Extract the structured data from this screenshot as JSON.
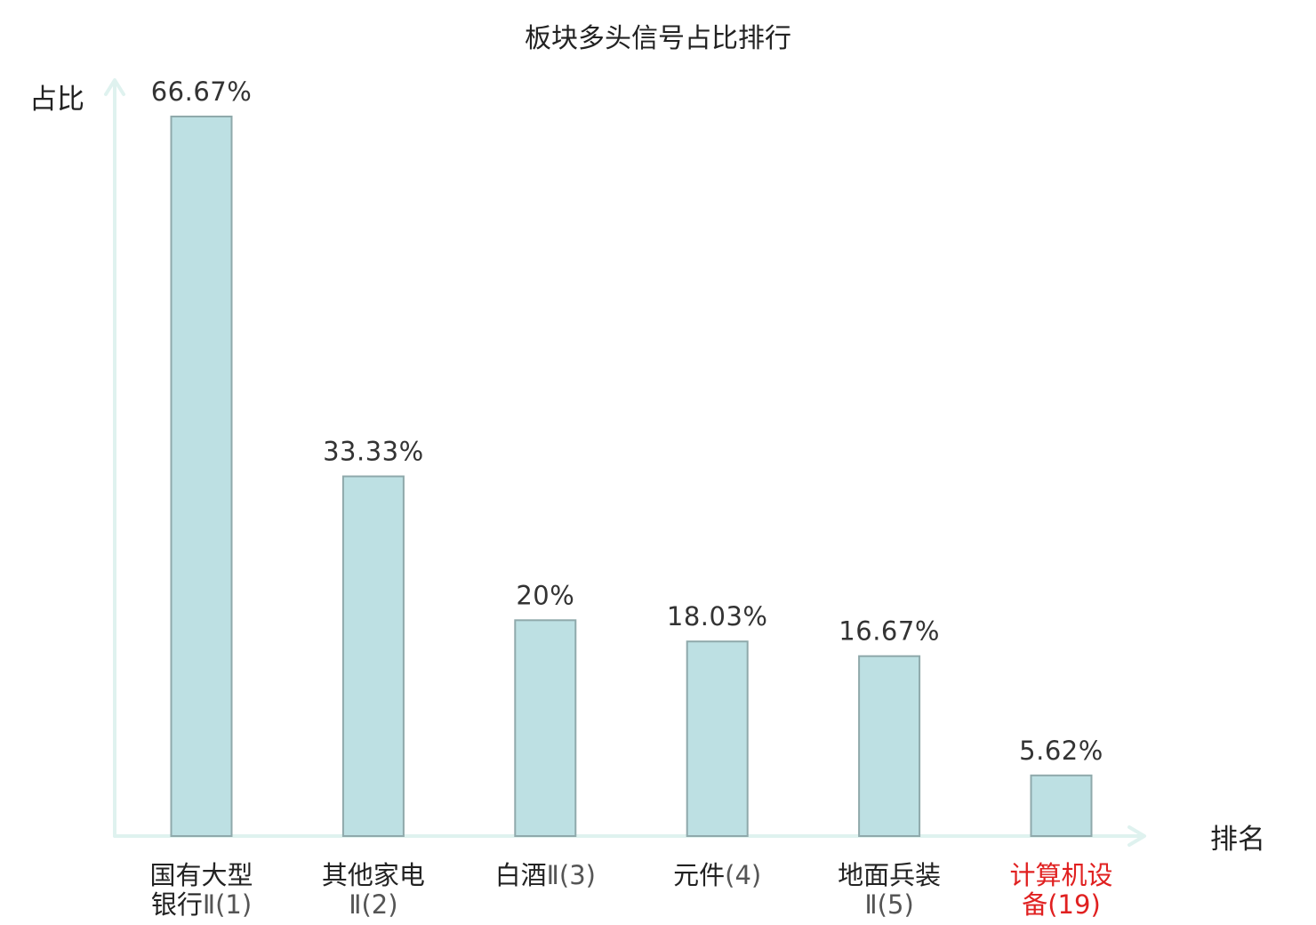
{
  "chart_data": {
    "type": "bar",
    "title": "板块多头信号占比排行",
    "xlabel": "排名",
    "ylabel": "占比",
    "categories": [
      [
        "国有大型",
        "银行Ⅱ(1)"
      ],
      [
        "其他家电",
        "Ⅱ(2)"
      ],
      [
        "白酒Ⅱ(3)"
      ],
      [
        "元件(4)"
      ],
      [
        "地面兵装",
        "Ⅱ(5)"
      ],
      [
        "计算机设",
        "备(19)"
      ]
    ],
    "values": [
      66.67,
      33.33,
      20,
      18.03,
      16.67,
      5.62
    ],
    "value_labels": [
      "66.67%",
      "33.33%",
      "20%",
      "18.03%",
      "16.67%",
      "5.62%"
    ],
    "highlight_index": 5,
    "ylim": [
      0,
      66.67
    ],
    "grid": false,
    "colors": {
      "bar_fill": "#bde0e3",
      "bar_stroke": "#8fa9ab",
      "axis": "#dff2ef",
      "highlight_text": "#e02020"
    }
  }
}
